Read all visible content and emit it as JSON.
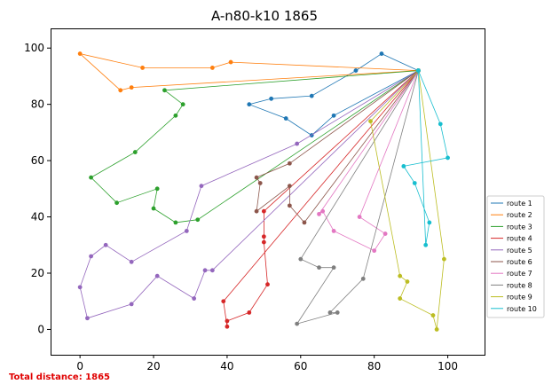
{
  "chart_data": {
    "type": "line",
    "title": "A-n80-k10 1865",
    "xlabel": "",
    "ylabel": "",
    "xlim": [
      -8,
      110
    ],
    "ylim": [
      -9,
      107
    ],
    "xticks": [
      0,
      20,
      40,
      60,
      80,
      100
    ],
    "yticks": [
      0,
      20,
      40,
      60,
      80,
      100
    ],
    "grid": false,
    "legend_position": "right",
    "depot": [
      92,
      92
    ],
    "series": [
      {
        "name": "route 1",
        "color": "#1f77b4",
        "points": [
          [
            92,
            92
          ],
          [
            82,
            98
          ],
          [
            75,
            92
          ],
          [
            63,
            83
          ],
          [
            52,
            82
          ],
          [
            46,
            80
          ],
          [
            56,
            75
          ],
          [
            63,
            69
          ],
          [
            69,
            76
          ],
          [
            92,
            92
          ]
        ]
      },
      {
        "name": "route 2",
        "color": "#ff7f0e",
        "points": [
          [
            92,
            92
          ],
          [
            41,
            95
          ],
          [
            36,
            93
          ],
          [
            17,
            93
          ],
          [
            0,
            98
          ],
          [
            11,
            85
          ],
          [
            14,
            86
          ],
          [
            92,
            92
          ]
        ]
      },
      {
        "name": "route 3",
        "color": "#2ca02c",
        "points": [
          [
            92,
            92
          ],
          [
            23,
            85
          ],
          [
            28,
            80
          ],
          [
            26,
            76
          ],
          [
            15,
            63
          ],
          [
            3,
            54
          ],
          [
            10,
            45
          ],
          [
            21,
            50
          ],
          [
            20,
            43
          ],
          [
            26,
            38
          ],
          [
            32,
            39
          ],
          [
            92,
            92
          ]
        ]
      },
      {
        "name": "route 4",
        "color": "#d62728",
        "points": [
          [
            92,
            92
          ],
          [
            50,
            42
          ],
          [
            50,
            33
          ],
          [
            50,
            31
          ],
          [
            51,
            16
          ],
          [
            46,
            6
          ],
          [
            40,
            3
          ],
          [
            40,
            1
          ],
          [
            39,
            10
          ],
          [
            92,
            92
          ]
        ]
      },
      {
        "name": "route 5",
        "color": "#9467bd",
        "points": [
          [
            92,
            92
          ],
          [
            59,
            66
          ],
          [
            33,
            51
          ],
          [
            29,
            35
          ],
          [
            14,
            24
          ],
          [
            7,
            30
          ],
          [
            3,
            26
          ],
          [
            0,
            15
          ],
          [
            2,
            4
          ],
          [
            14,
            9
          ],
          [
            21,
            19
          ],
          [
            31,
            11
          ],
          [
            34,
            21
          ],
          [
            36,
            21
          ],
          [
            92,
            92
          ]
        ]
      },
      {
        "name": "route 6",
        "color": "#8c564b",
        "points": [
          [
            92,
            92
          ],
          [
            57,
            59
          ],
          [
            48,
            54
          ],
          [
            49,
            52
          ],
          [
            48,
            42
          ],
          [
            57,
            51
          ],
          [
            57,
            44
          ],
          [
            61,
            38
          ],
          [
            92,
            92
          ]
        ]
      },
      {
        "name": "route 7",
        "color": "#e377c2",
        "points": [
          [
            92,
            92
          ],
          [
            65,
            41
          ],
          [
            66,
            42
          ],
          [
            69,
            35
          ],
          [
            80,
            28
          ],
          [
            83,
            34
          ],
          [
            76,
            40
          ],
          [
            92,
            92
          ]
        ]
      },
      {
        "name": "route 8",
        "color": "#7f7f7f",
        "points": [
          [
            92,
            92
          ],
          [
            77,
            18
          ],
          [
            68,
            6
          ],
          [
            70,
            6
          ],
          [
            59,
            2
          ],
          [
            69,
            22
          ],
          [
            65,
            22
          ],
          [
            60,
            25
          ],
          [
            92,
            92
          ]
        ]
      },
      {
        "name": "route 9",
        "color": "#bcbd22",
        "points": [
          [
            92,
            92
          ],
          [
            79,
            74
          ],
          [
            87,
            19
          ],
          [
            89,
            17
          ],
          [
            87,
            11
          ],
          [
            96,
            5
          ],
          [
            97,
            0
          ],
          [
            99,
            25
          ],
          [
            92,
            92
          ]
        ]
      },
      {
        "name": "route 10",
        "color": "#17becf",
        "points": [
          [
            92,
            92
          ],
          [
            98,
            73
          ],
          [
            100,
            61
          ],
          [
            88,
            58
          ],
          [
            91,
            52
          ],
          [
            95,
            38
          ],
          [
            94,
            30
          ],
          [
            92,
            92
          ]
        ]
      }
    ]
  },
  "footer": {
    "total_distance": "Total distance: 1865"
  }
}
